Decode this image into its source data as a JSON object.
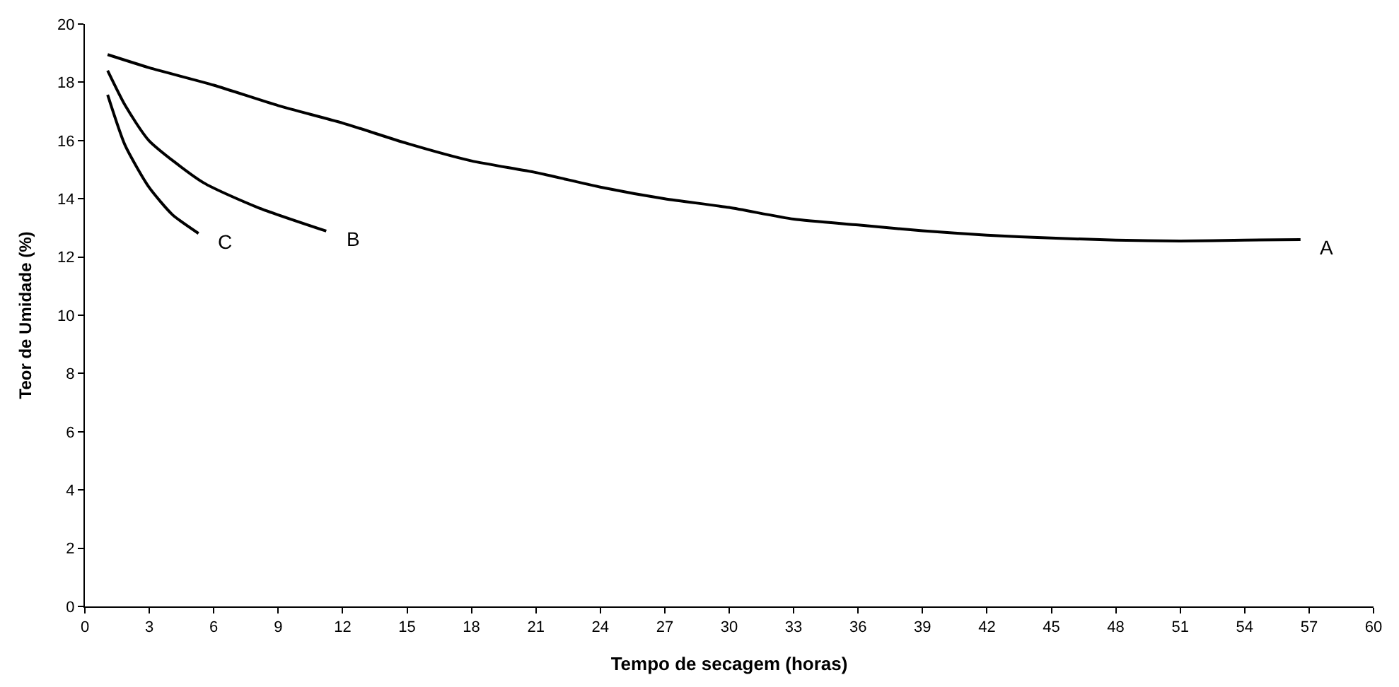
{
  "chart_data": {
    "type": "line",
    "xlabel": "Tempo de secagem (horas)",
    "ylabel": "Teor de Umidade (%)",
    "xlim": [
      0,
      60
    ],
    "xticks": [
      0,
      3,
      6,
      9,
      12,
      15,
      18,
      21,
      24,
      27,
      30,
      33,
      36,
      39,
      42,
      45,
      48,
      51,
      54,
      57,
      60
    ],
    "ylim": [
      0,
      20
    ],
    "yticks": [
      0,
      2,
      4,
      6,
      8,
      10,
      12,
      14,
      16,
      18,
      20
    ],
    "legend": false,
    "marker": "none",
    "line_style": "solid",
    "series": [
      {
        "name": "A",
        "color": "#000000",
        "x": [
          1.06,
          3,
          6,
          9,
          12,
          15,
          18,
          21,
          24,
          27,
          30,
          33,
          36,
          39,
          42,
          45,
          48,
          51,
          54,
          56.6
        ],
        "values": [
          18.95,
          18.5,
          17.9,
          17.2,
          16.6,
          15.9,
          15.3,
          14.9,
          14.4,
          14.0,
          13.7,
          13.3,
          13.1,
          12.9,
          12.75,
          12.65,
          12.58,
          12.55,
          12.58,
          12.6
        ]
      },
      {
        "name": "B",
        "color": "#000000",
        "x": [
          1.06,
          1.88,
          2.98,
          5.5,
          8.05,
          11.24
        ],
        "values": [
          18.4,
          17.2,
          16.0,
          14.56,
          13.7,
          12.89
        ]
      },
      {
        "name": "C",
        "color": "#000000",
        "x": [
          1.06,
          1.87,
          2.98,
          4.08,
          5.29
        ],
        "values": [
          17.57,
          15.84,
          14.4,
          13.45,
          12.81
        ]
      }
    ]
  }
}
